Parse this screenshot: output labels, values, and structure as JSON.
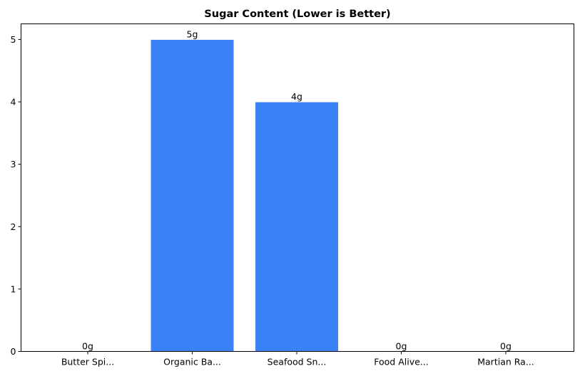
{
  "chart_data": {
    "type": "bar",
    "title": "Sugar Content (Lower is Better)",
    "xlabel": "",
    "ylabel": "",
    "categories": [
      "Butter Spi...",
      "Organic Ba...",
      "Seafood Sn...",
      "Food Alive...",
      "Martian Ra..."
    ],
    "values": [
      0,
      5,
      4,
      0,
      0
    ],
    "data_labels": [
      "0g",
      "5g",
      "4g",
      "0g",
      "0g"
    ],
    "ylim": [
      0,
      5.25
    ],
    "yticks": [
      0,
      1,
      2,
      3,
      4,
      5
    ],
    "ytick_labels": [
      "0",
      "1",
      "2",
      "3",
      "4",
      "5"
    ],
    "grid": false,
    "bar_color": "#3b82f6",
    "bar_edge_color": "#ffffff"
  }
}
